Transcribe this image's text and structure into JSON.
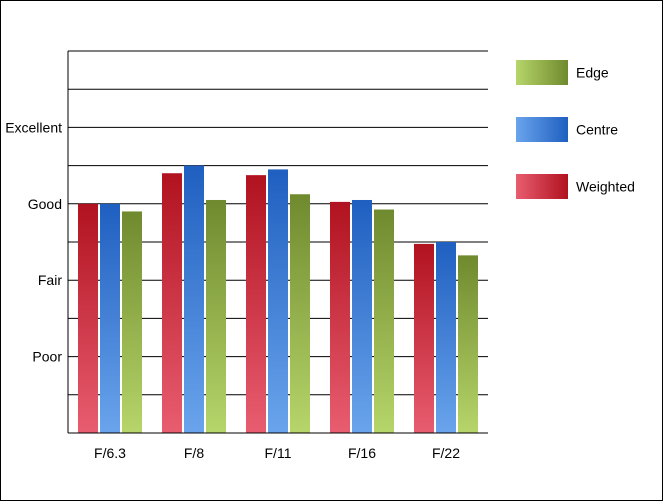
{
  "chart_data": {
    "type": "bar",
    "categories": [
      "F/6.3",
      "F/8",
      "F/11",
      "F/16",
      "F/22"
    ],
    "series": [
      {
        "name": "Weighted",
        "values": [
          6.0,
          6.8,
          6.75,
          6.05,
          4.95
        ],
        "color": "#b1121f",
        "color_light": "#e85d70"
      },
      {
        "name": "Centre",
        "values": [
          6.0,
          7.0,
          6.9,
          6.1,
          5.0
        ],
        "color": "#1f5fc0",
        "color_light": "#6aa4ec"
      },
      {
        "name": "Edge",
        "values": [
          5.8,
          6.1,
          6.25,
          5.85,
          4.65
        ],
        "color": "#6f8a2e",
        "color_light": "#b6d56a"
      }
    ],
    "y_tick_labels": [
      {
        "value": 2,
        "label": "Poor"
      },
      {
        "value": 4,
        "label": "Fair"
      },
      {
        "value": 6,
        "label": "Good"
      },
      {
        "value": 8,
        "label": "Excellent"
      }
    ],
    "ylim": [
      0,
      10
    ],
    "grid": true,
    "legend": {
      "placement": "right",
      "items": [
        {
          "label": "Edge",
          "color": "#6f8a2e",
          "color_light": "#b6d56a"
        },
        {
          "label": "Centre",
          "color": "#1f5fc0",
          "color_light": "#6aa4ec"
        },
        {
          "label": "Weighted",
          "color": "#b1121f",
          "color_light": "#e85d70"
        }
      ]
    }
  }
}
